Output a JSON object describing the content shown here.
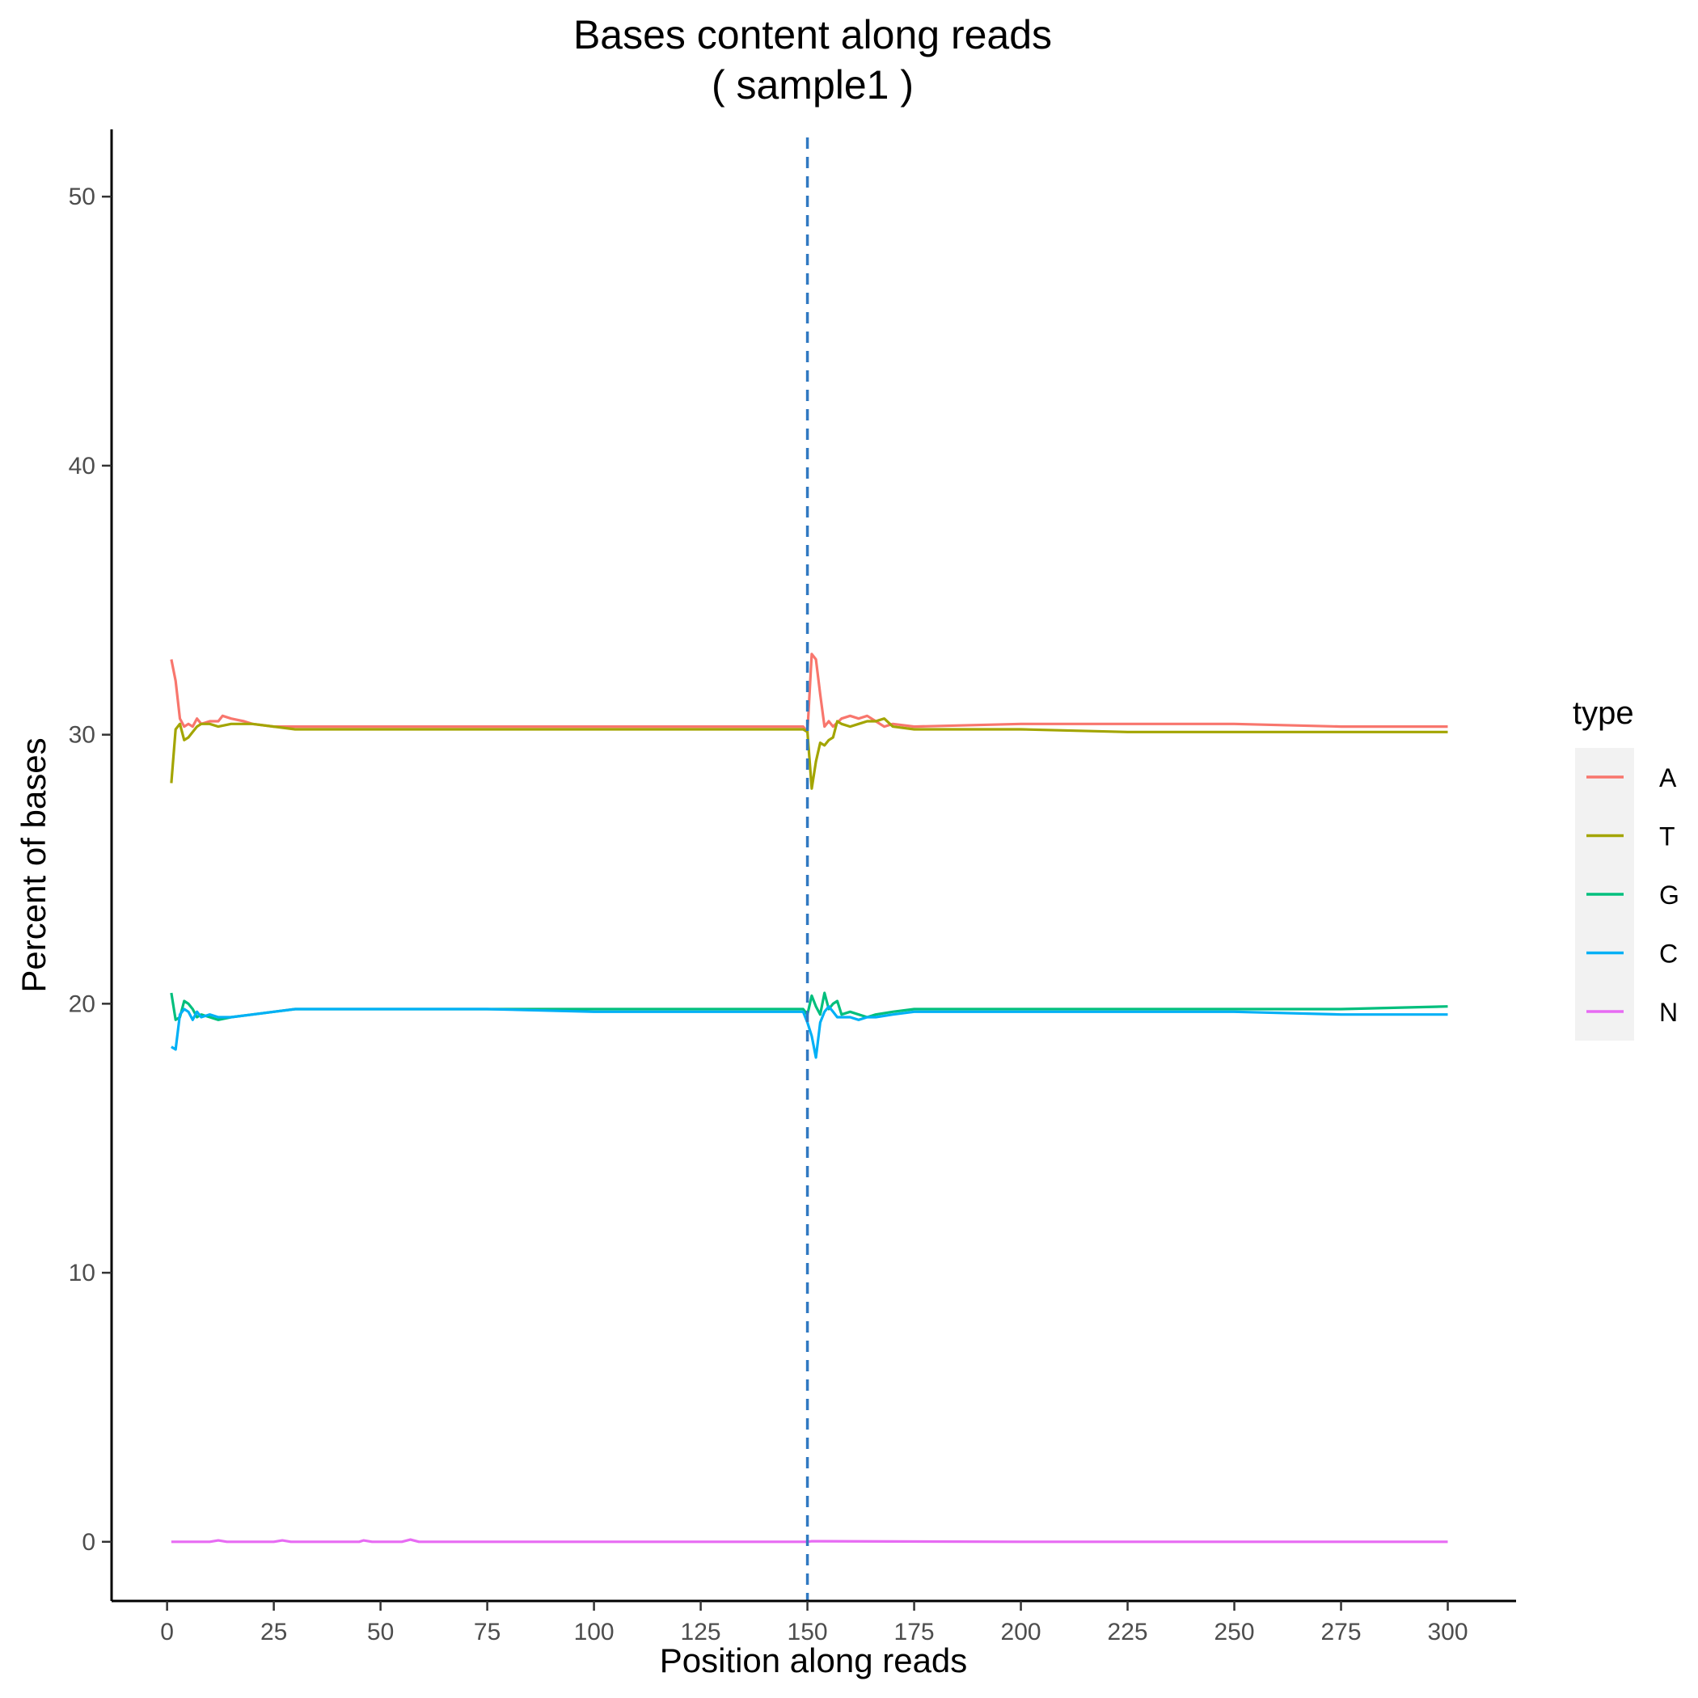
{
  "chart_data": {
    "type": "line",
    "title": "Bases content along reads",
    "subtitle": "( sample1 )",
    "xlabel": "Position along reads",
    "ylabel": "Percent of bases",
    "xlim": [
      -13,
      316
    ],
    "ylim": [
      -2.2,
      52.5
    ],
    "xticks": [
      0,
      25,
      50,
      75,
      100,
      125,
      150,
      175,
      200,
      225,
      250,
      275,
      300
    ],
    "yticks": [
      0,
      10,
      20,
      30,
      40,
      50
    ],
    "grid": false,
    "vline": {
      "x": 150,
      "color": "#3079c2",
      "style": "dashed"
    },
    "legend": {
      "title": "type",
      "position": "right"
    },
    "series": [
      {
        "name": "A",
        "color": "#F8766D",
        "x": [
          1,
          2,
          3,
          4,
          5,
          6,
          7,
          8,
          10,
          12,
          13,
          15,
          18,
          20,
          25,
          30,
          40,
          50,
          75,
          100,
          125,
          149,
          150,
          151,
          152,
          153,
          154,
          155,
          156,
          158,
          160,
          162,
          164,
          166,
          168,
          170,
          175,
          200,
          225,
          250,
          275,
          300
        ],
        "values": [
          32.8,
          32.0,
          30.6,
          30.3,
          30.4,
          30.3,
          30.6,
          30.4,
          30.5,
          30.5,
          30.7,
          30.6,
          30.5,
          30.4,
          30.3,
          30.3,
          30.3,
          30.3,
          30.3,
          30.3,
          30.3,
          30.3,
          30.1,
          33.0,
          32.8,
          31.5,
          30.3,
          30.5,
          30.3,
          30.6,
          30.7,
          30.6,
          30.7,
          30.5,
          30.3,
          30.4,
          30.3,
          30.4,
          30.4,
          30.4,
          30.3,
          30.3
        ]
      },
      {
        "name": "T",
        "color": "#A3A500",
        "x": [
          1,
          2,
          3,
          4,
          5,
          6,
          7,
          8,
          10,
          12,
          15,
          18,
          20,
          25,
          30,
          40,
          50,
          75,
          100,
          125,
          149,
          150,
          151,
          152,
          153,
          154,
          155,
          156,
          157,
          158,
          160,
          162,
          164,
          166,
          168,
          170,
          175,
          200,
          225,
          250,
          275,
          300
        ],
        "values": [
          28.2,
          30.2,
          30.4,
          29.8,
          29.9,
          30.1,
          30.3,
          30.4,
          30.4,
          30.3,
          30.4,
          30.4,
          30.4,
          30.3,
          30.2,
          30.2,
          30.2,
          30.2,
          30.2,
          30.2,
          30.2,
          30.1,
          28.0,
          29.0,
          29.7,
          29.6,
          29.8,
          29.9,
          30.5,
          30.4,
          30.3,
          30.4,
          30.5,
          30.5,
          30.6,
          30.3,
          30.2,
          30.2,
          30.1,
          30.1,
          30.1,
          30.1
        ]
      },
      {
        "name": "G",
        "color": "#00BF7D",
        "x": [
          1,
          2,
          3,
          4,
          5,
          6,
          7,
          8,
          10,
          12,
          15,
          20,
          25,
          30,
          50,
          75,
          100,
          125,
          149,
          150,
          151,
          152,
          153,
          154,
          155,
          156,
          157,
          158,
          160,
          162,
          164,
          166,
          170,
          175,
          200,
          225,
          250,
          275,
          300
        ],
        "values": [
          20.4,
          19.4,
          19.5,
          20.1,
          20.0,
          19.8,
          19.5,
          19.6,
          19.5,
          19.4,
          19.5,
          19.6,
          19.7,
          19.8,
          19.8,
          19.8,
          19.8,
          19.8,
          19.8,
          19.6,
          20.3,
          19.9,
          19.6,
          20.4,
          19.8,
          20.0,
          20.1,
          19.6,
          19.7,
          19.6,
          19.5,
          19.6,
          19.7,
          19.8,
          19.8,
          19.8,
          19.8,
          19.8,
          19.9
        ]
      },
      {
        "name": "C",
        "color": "#00B0F6",
        "x": [
          1,
          2,
          3,
          4,
          5,
          6,
          7,
          8,
          10,
          12,
          15,
          20,
          25,
          30,
          50,
          75,
          100,
          125,
          149,
          150,
          151,
          152,
          153,
          154,
          155,
          156,
          157,
          158,
          160,
          162,
          164,
          166,
          170,
          175,
          200,
          225,
          250,
          275,
          300
        ],
        "values": [
          18.4,
          18.3,
          19.6,
          19.8,
          19.7,
          19.4,
          19.7,
          19.5,
          19.6,
          19.5,
          19.5,
          19.6,
          19.7,
          19.8,
          19.8,
          19.8,
          19.7,
          19.7,
          19.7,
          19.3,
          18.8,
          18.0,
          19.3,
          19.7,
          19.9,
          19.7,
          19.5,
          19.5,
          19.5,
          19.4,
          19.5,
          19.5,
          19.6,
          19.7,
          19.7,
          19.7,
          19.7,
          19.6,
          19.6
        ]
      },
      {
        "name": "N",
        "color": "#E76BF3",
        "x": [
          1,
          10,
          12,
          14,
          25,
          27,
          29,
          45,
          46,
          48,
          55,
          57,
          59,
          100,
          150,
          151,
          200,
          250,
          300
        ],
        "values": [
          0.0,
          0.0,
          0.05,
          0.0,
          0.0,
          0.05,
          0.0,
          0.0,
          0.05,
          0.0,
          0.0,
          0.08,
          0.0,
          0.0,
          0.0,
          0.02,
          0.0,
          0.0,
          0.0
        ]
      }
    ]
  }
}
